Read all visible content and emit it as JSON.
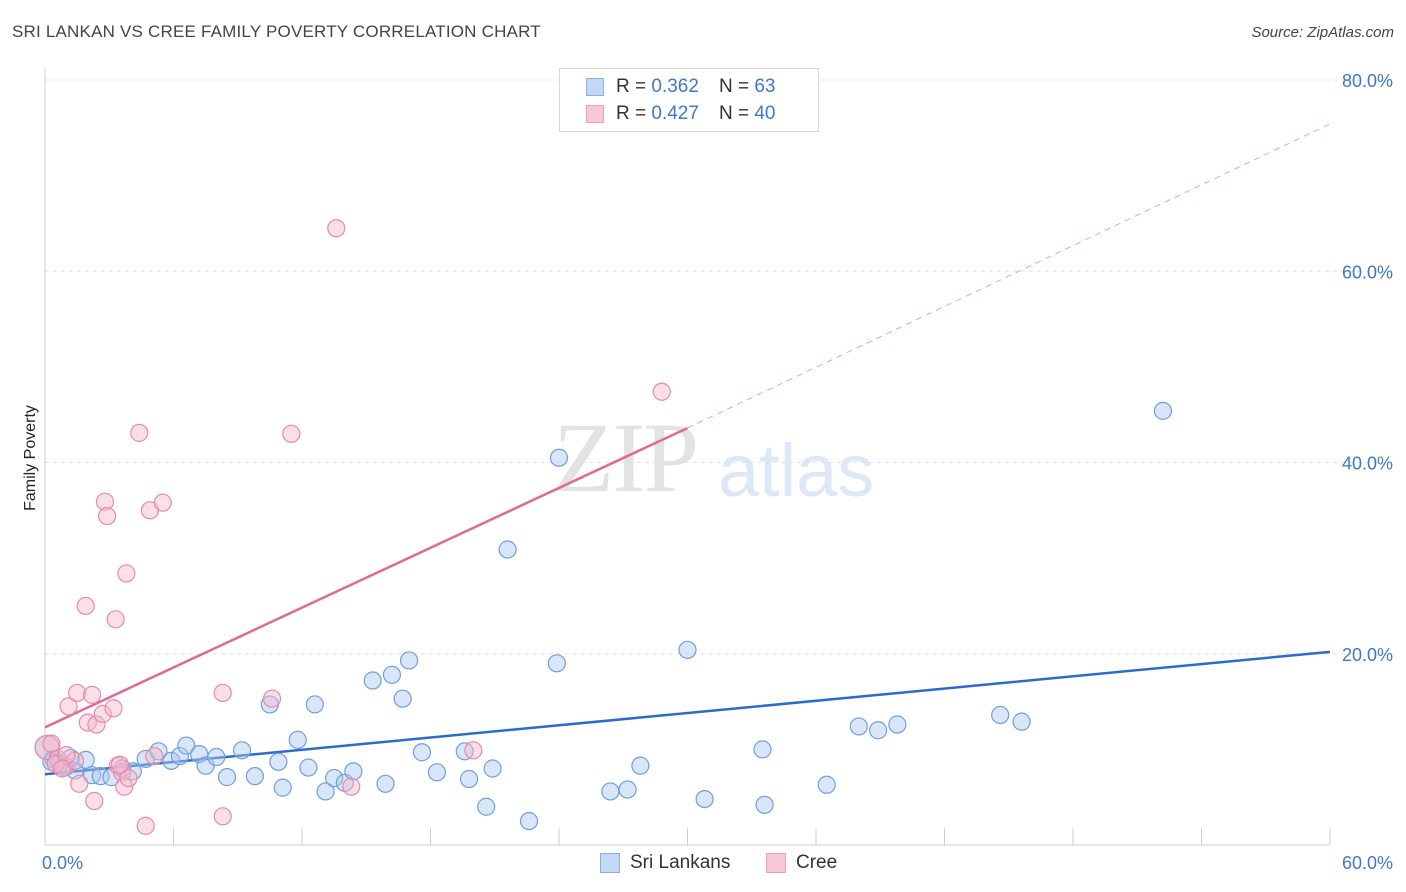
{
  "title": "SRI LANKAN VS CREE FAMILY POVERTY CORRELATION CHART",
  "source": "Source: ZipAtlas.com",
  "watermark": {
    "zip": "ZIP",
    "atlas": "atlas"
  },
  "legend": {
    "row1": {
      "r_label": "R =",
      "r_value": "0.362",
      "n_label": "N =",
      "n_value": "63"
    },
    "row2": {
      "r_label": "R =",
      "r_value": "0.427",
      "n_label": "N =",
      "n_value": "40"
    }
  },
  "bottom_legend": {
    "series1": "Sri Lankans",
    "series2": "Cree"
  },
  "colors": {
    "blue_fill": "#a8c8f0",
    "blue_stroke": "#6f9fdc",
    "blue_line": "#2a6ccc",
    "pink_fill": "#f5b8cb",
    "pink_stroke": "#e88aa8",
    "pink_line": "#e06a92",
    "tick_text": "#3e78c9"
  },
  "chart_data": {
    "type": "scatter",
    "title": "SRI LANKAN VS CREE FAMILY POVERTY CORRELATION CHART",
    "xlabel": "",
    "ylabel": "Family Poverty",
    "xlim": [
      0,
      60
    ],
    "ylim": [
      0,
      80
    ],
    "x_tick_labels": [
      "0.0%",
      "60.0%"
    ],
    "y_tick_labels": [
      "20.0%",
      "40.0%",
      "60.0%",
      "80.0%"
    ],
    "y_ticks": [
      20,
      40,
      60,
      80
    ],
    "series": [
      {
        "name": "Sri Lankans",
        "color": "#6f9fdc",
        "R": 0.362,
        "N": 63,
        "trend": {
          "x0": 0,
          "y0": 7.4,
          "x1": 60,
          "y1": 20.2
        },
        "points": [
          [
            0.1,
            10.2
          ],
          [
            0.4,
            9.0
          ],
          [
            0.7,
            8.5
          ],
          [
            1.0,
            8.2
          ],
          [
            1.4,
            7.8
          ],
          [
            1.9,
            8.9
          ],
          [
            2.2,
            7.3
          ],
          [
            2.6,
            7.2
          ],
          [
            3.1,
            7.1
          ],
          [
            3.6,
            8.0
          ],
          [
            4.1,
            7.7
          ],
          [
            4.7,
            9.0
          ],
          [
            5.3,
            9.8
          ],
          [
            5.9,
            8.8
          ],
          [
            6.3,
            9.3
          ],
          [
            6.6,
            10.4
          ],
          [
            7.2,
            9.5
          ],
          [
            7.5,
            8.3
          ],
          [
            8.0,
            9.2
          ],
          [
            8.5,
            7.1
          ],
          [
            9.2,
            9.9
          ],
          [
            9.8,
            7.2
          ],
          [
            10.5,
            14.7
          ],
          [
            10.9,
            8.7
          ],
          [
            11.1,
            6.0
          ],
          [
            11.8,
            11.0
          ],
          [
            12.3,
            8.1
          ],
          [
            12.6,
            14.7
          ],
          [
            13.1,
            5.6
          ],
          [
            13.5,
            7.0
          ],
          [
            14.0,
            6.5
          ],
          [
            14.4,
            7.7
          ],
          [
            15.3,
            17.2
          ],
          [
            15.9,
            6.4
          ],
          [
            16.2,
            17.8
          ],
          [
            16.7,
            15.3
          ],
          [
            17.0,
            19.3
          ],
          [
            17.6,
            9.7
          ],
          [
            18.3,
            7.6
          ],
          [
            19.6,
            9.8
          ],
          [
            19.8,
            6.9
          ],
          [
            20.6,
            4.0
          ],
          [
            20.9,
            8.0
          ],
          [
            21.6,
            30.9
          ],
          [
            22.6,
            2.5
          ],
          [
            23.9,
            19.0
          ],
          [
            24.0,
            40.5
          ],
          [
            26.4,
            5.6
          ],
          [
            27.2,
            5.8
          ],
          [
            27.8,
            8.3
          ],
          [
            30.0,
            20.4
          ],
          [
            30.8,
            4.8
          ],
          [
            33.5,
            10.0
          ],
          [
            33.6,
            4.2
          ],
          [
            36.5,
            6.3
          ],
          [
            38.0,
            12.4
          ],
          [
            38.9,
            12.0
          ],
          [
            39.8,
            12.6
          ],
          [
            44.6,
            13.6
          ],
          [
            45.6,
            12.9
          ],
          [
            52.2,
            45.4
          ],
          [
            0.3,
            8.7
          ],
          [
            1.2,
            9.1
          ]
        ]
      },
      {
        "name": "Cree",
        "color": "#e88aa8",
        "R": 0.427,
        "N": 40,
        "trend": {
          "x0": 0,
          "y0": 12.3,
          "x1": 30,
          "y1": 43.6
        },
        "trend_ext": {
          "x0": 30,
          "y0": 43.6,
          "x1": 60,
          "y1": 75.4
        },
        "points": [
          [
            0.1,
            10.2
          ],
          [
            0.3,
            10.6
          ],
          [
            0.6,
            9.0
          ],
          [
            0.9,
            8.1
          ],
          [
            1.1,
            14.5
          ],
          [
            1.4,
            8.8
          ],
          [
            1.5,
            15.9
          ],
          [
            1.6,
            6.4
          ],
          [
            1.9,
            25.0
          ],
          [
            2.0,
            12.8
          ],
          [
            2.2,
            15.7
          ],
          [
            2.3,
            4.6
          ],
          [
            2.4,
            12.6
          ],
          [
            2.7,
            13.7
          ],
          [
            2.8,
            35.9
          ],
          [
            2.9,
            34.4
          ],
          [
            3.2,
            14.3
          ],
          [
            3.3,
            23.6
          ],
          [
            3.4,
            8.3
          ],
          [
            3.6,
            7.6
          ],
          [
            3.7,
            6.1
          ],
          [
            3.9,
            7.0
          ],
          [
            3.8,
            28.4
          ],
          [
            4.4,
            43.1
          ],
          [
            4.7,
            2.0
          ],
          [
            4.9,
            35.0
          ],
          [
            5.1,
            9.3
          ],
          [
            5.5,
            35.8
          ],
          [
            8.3,
            15.9
          ],
          [
            8.3,
            3.0
          ],
          [
            10.6,
            15.3
          ],
          [
            11.5,
            43.0
          ],
          [
            13.6,
            64.5
          ],
          [
            14.3,
            6.1
          ],
          [
            20.0,
            9.9
          ],
          [
            28.8,
            47.4
          ],
          [
            0.5,
            8.5
          ],
          [
            1.0,
            9.4
          ],
          [
            0.8,
            8.0
          ],
          [
            3.5,
            8.4
          ]
        ]
      }
    ]
  }
}
